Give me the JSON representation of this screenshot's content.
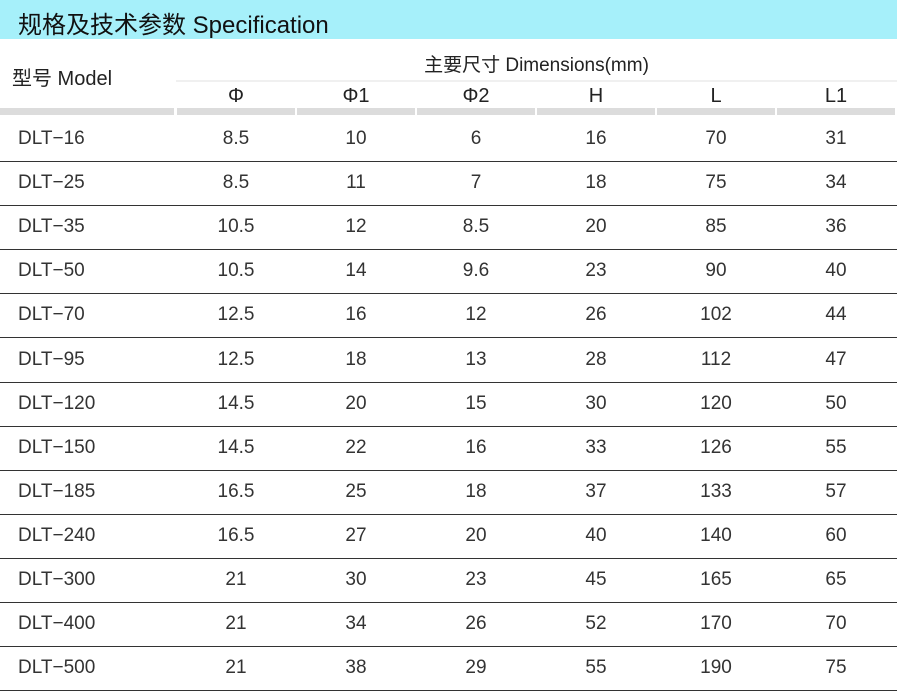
{
  "title": "规格及技术参数  Specification",
  "header": {
    "model": "型号 Model",
    "dimensions": "主要尺寸  Dimensions(mm)",
    "columns": [
      "Φ",
      "Φ1",
      "Φ2",
      "H",
      "L",
      "L1"
    ]
  },
  "colors": {
    "title_bar": "#a6f0fa",
    "header_bar": "#dcdcdc",
    "row_line": "#333333"
  },
  "rows": [
    [
      "DLT−16",
      "8.5",
      "10",
      "6",
      "16",
      "70",
      "31"
    ],
    [
      "DLT−25",
      "8.5",
      "11",
      "7",
      "18",
      "75",
      "34"
    ],
    [
      "DLT−35",
      "10.5",
      "12",
      "8.5",
      "20",
      "85",
      "36"
    ],
    [
      "DLT−50",
      "10.5",
      "14",
      "9.6",
      "23",
      "90",
      "40"
    ],
    [
      "DLT−70",
      "12.5",
      "16",
      "12",
      "26",
      "102",
      "44"
    ],
    [
      "DLT−95",
      "12.5",
      "18",
      "13",
      "28",
      "112",
      "47"
    ],
    [
      "DLT−120",
      "14.5",
      "20",
      "15",
      "30",
      "120",
      "50"
    ],
    [
      "DLT−150",
      "14.5",
      "22",
      "16",
      "33",
      "126",
      "55"
    ],
    [
      "DLT−185",
      "16.5",
      "25",
      "18",
      "37",
      "133",
      "57"
    ],
    [
      "DLT−240",
      "16.5",
      "27",
      "20",
      "40",
      "140",
      "60"
    ],
    [
      "DLT−300",
      "21",
      "30",
      "23",
      "45",
      "165",
      "65"
    ],
    [
      "DLT−400",
      "21",
      "34",
      "26",
      "52",
      "170",
      "70"
    ],
    [
      "DLT−500",
      "21",
      "38",
      "29",
      "55",
      "190",
      "75"
    ]
  ]
}
